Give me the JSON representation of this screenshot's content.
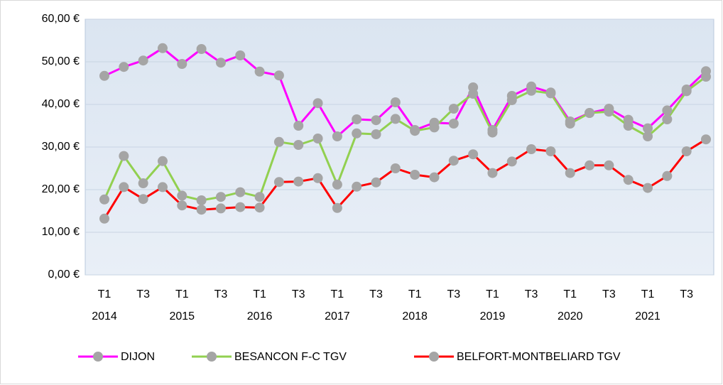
{
  "chart_data": {
    "type": "line",
    "categories": [
      "T1",
      null,
      "T3",
      null,
      "T1",
      null,
      "T3",
      null,
      "T1",
      null,
      "T3",
      null,
      "T1",
      null,
      "T3",
      null,
      "T1",
      null,
      "T3",
      null,
      "T1",
      null,
      "T3",
      null,
      "T1",
      null,
      "T3",
      null,
      "T1",
      null,
      "T3",
      null
    ],
    "category_groups": [
      "2014",
      "2015",
      "2016",
      "2017",
      "2018",
      "2019",
      "2020",
      "2021"
    ],
    "series": [
      {
        "name": "DIJON",
        "color": "#ff00ff",
        "values": [
          46.7,
          48.8,
          50.3,
          53.2,
          49.5,
          53,
          49.8,
          51.5,
          47.7,
          46.8,
          35,
          40.3,
          32.5,
          36.5,
          36.3,
          40.5,
          34,
          35.7,
          35.5,
          44,
          34,
          42,
          44.2,
          42.8,
          36,
          38,
          39,
          36.4,
          34.4,
          38.6,
          43.5,
          47.8
        ]
      },
      {
        "name": "BESANCON F-C TGV",
        "color": "#92d050",
        "values": [
          17.7,
          27.9,
          21.5,
          26.7,
          18.6,
          17.5,
          18.3,
          19.4,
          18.3,
          31.2,
          30.5,
          32,
          21.2,
          33.2,
          33,
          36.6,
          33.8,
          34.6,
          39,
          42.5,
          33.4,
          41,
          43.2,
          42.6,
          35.5,
          38,
          38.3,
          35,
          32.5,
          36.5,
          43.1,
          46.5
        ]
      },
      {
        "name": "BELFORT-MONTBELIARD TGV",
        "color": "#ff0000",
        "values": [
          13.2,
          20.6,
          17.8,
          20.6,
          16.3,
          15.3,
          15.6,
          15.9,
          15.8,
          21.8,
          21.9,
          22.7,
          15.7,
          20.7,
          21.7,
          25,
          23.5,
          22.9,
          26.8,
          28.3,
          23.9,
          26.6,
          29.5,
          29,
          23.9,
          25.7,
          25.7,
          22.3,
          20.4,
          23.2,
          29,
          31.8
        ]
      }
    ],
    "marker_color": "#a5a5a5",
    "ylim": [
      0,
      60
    ],
    "yticks": [
      {
        "value": 0,
        "label": "0,00 €"
      },
      {
        "value": 10,
        "label": "10,00 €"
      },
      {
        "value": 20,
        "label": "20,00 €"
      },
      {
        "value": 30,
        "label": "30,00 €"
      },
      {
        "value": 40,
        "label": "40,00 €"
      },
      {
        "value": 50,
        "label": "50,00 €"
      },
      {
        "value": 60,
        "label": "60,00 €"
      }
    ],
    "grid": true,
    "legend": "bottom"
  }
}
